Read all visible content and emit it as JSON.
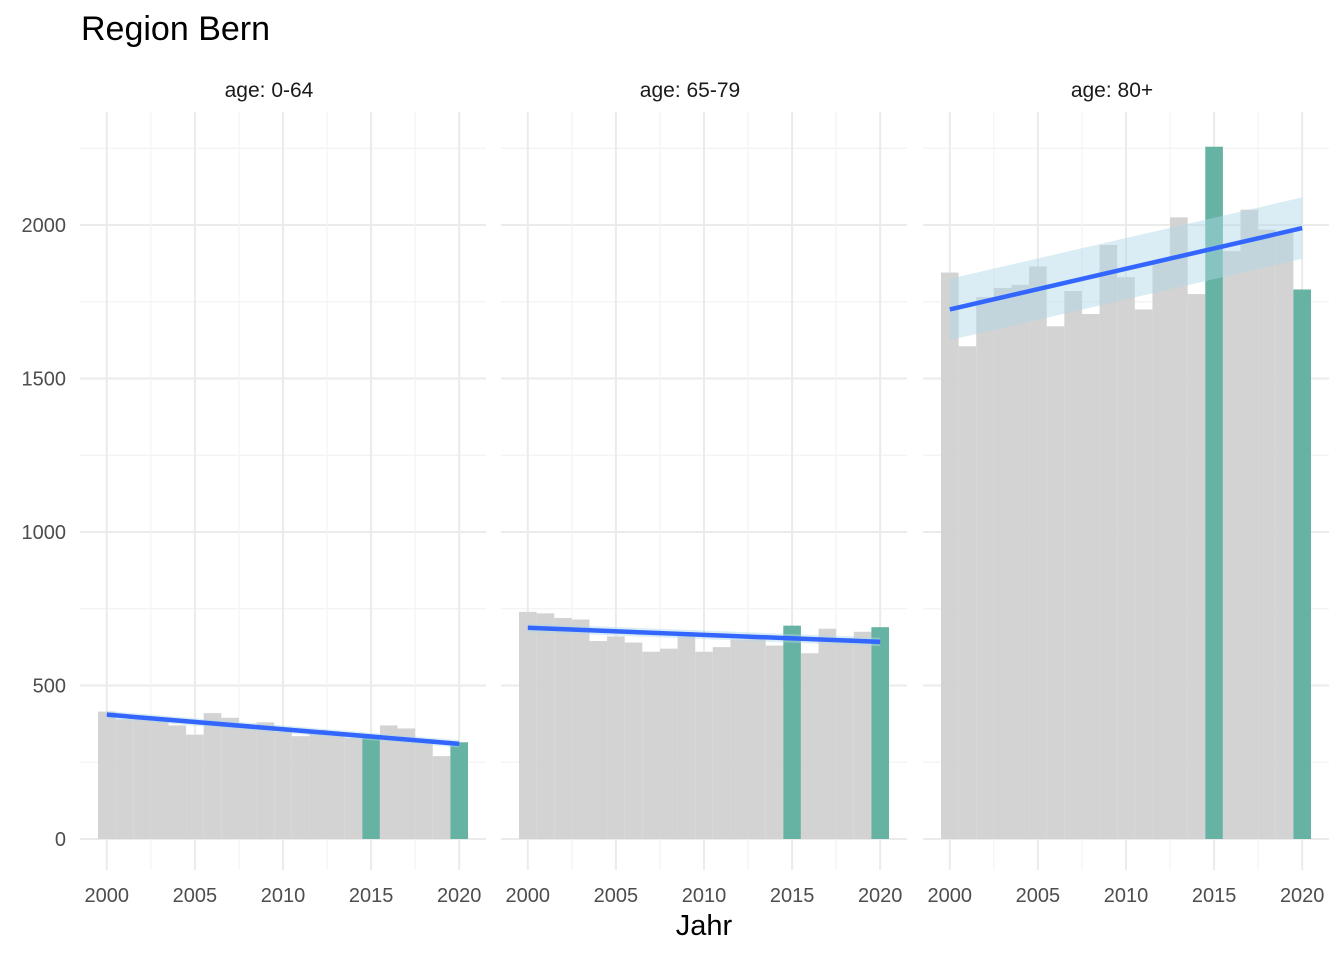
{
  "chart_data": {
    "type": "bar",
    "title": "Region Bern",
    "xlabel": "Jahr",
    "ylabel": "",
    "ylim": [
      0,
      2300
    ],
    "y_ticks": [
      0,
      500,
      1000,
      1500,
      2000
    ],
    "x_ticks": [
      2000,
      2005,
      2010,
      2015,
      2020
    ],
    "xlim": [
      1999.5,
      2020.5
    ],
    "highlight_years": [
      2015,
      2020
    ],
    "colors": {
      "bar": "#d3d3d3",
      "highlight": "#66b2a3",
      "trend": "#3366ff",
      "ribbon": "#add8e6",
      "grid": "#ebebeb"
    },
    "panels": [
      {
        "label": "age: 0-64",
        "x": [
          2000,
          2001,
          2002,
          2003,
          2004,
          2005,
          2006,
          2007,
          2008,
          2009,
          2010,
          2011,
          2012,
          2013,
          2014,
          2015,
          2016,
          2017,
          2018,
          2019,
          2020
        ],
        "values": [
          415,
          390,
          395,
          385,
          370,
          340,
          410,
          395,
          370,
          380,
          350,
          335,
          355,
          340,
          330,
          335,
          370,
          360,
          325,
          270,
          315
        ],
        "trend": [
          405,
          310
        ],
        "ribbon_halfwidth": 12
      },
      {
        "label": "age: 65-79",
        "x": [
          2000,
          2001,
          2002,
          2003,
          2004,
          2005,
          2006,
          2007,
          2008,
          2009,
          2010,
          2011,
          2012,
          2013,
          2014,
          2015,
          2016,
          2017,
          2018,
          2019,
          2020
        ],
        "values": [
          740,
          735,
          720,
          715,
          645,
          660,
          640,
          610,
          620,
          660,
          610,
          625,
          650,
          655,
          630,
          695,
          605,
          685,
          655,
          675,
          690
        ],
        "trend": [
          688,
          642
        ],
        "ribbon_halfwidth": 14
      },
      {
        "label": "age: 80+",
        "x": [
          2000,
          2001,
          2002,
          2003,
          2004,
          2005,
          2006,
          2007,
          2008,
          2009,
          2010,
          2011,
          2012,
          2013,
          2014,
          2015,
          2016,
          2017,
          2018,
          2019,
          2020
        ],
        "values": [
          1845,
          1605,
          1765,
          1795,
          1805,
          1865,
          1670,
          1785,
          1710,
          1935,
          1830,
          1725,
          1885,
          2025,
          1775,
          2255,
          1915,
          2050,
          1985,
          1975,
          1790
        ],
        "trend": [
          1725,
          1990
        ],
        "ribbon_halfwidth": 100
      }
    ]
  }
}
